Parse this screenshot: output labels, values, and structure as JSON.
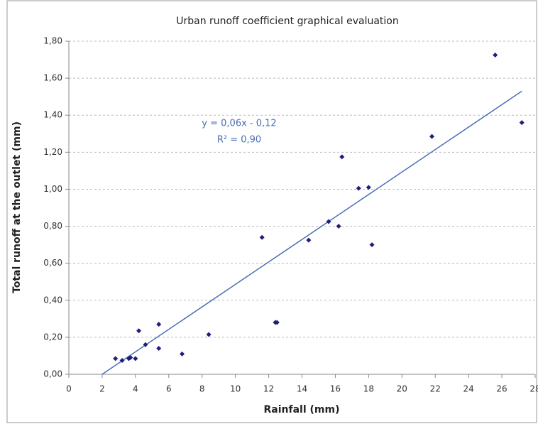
{
  "chart_data": {
    "type": "scatter",
    "title": "Urban runoff coefficient graphical evaluation",
    "x_label": "Rainfall (mm)",
    "y_label": "Total runoff at the outlet (mm)",
    "xlim": [
      0,
      28
    ],
    "xticks": [
      0,
      2,
      4,
      6,
      8,
      10,
      12,
      14,
      16,
      18,
      20,
      22,
      24,
      26,
      28
    ],
    "ylim": [
      0,
      1.8
    ],
    "yticks": [
      {
        "value": 0,
        "label": "0,00"
      },
      {
        "value": 0.2,
        "label": "0,20"
      },
      {
        "value": 0.4,
        "label": "0,40"
      },
      {
        "value": 0.6,
        "label": "0,60"
      },
      {
        "value": 0.8,
        "label": "0,80"
      },
      {
        "value": 1.0,
        "label": "1,00"
      },
      {
        "value": 1.2,
        "label": "1,20"
      },
      {
        "value": 1.4,
        "label": "1,40"
      },
      {
        "value": 1.6,
        "label": "1,60"
      },
      {
        "value": 1.8,
        "label": "1,80"
      }
    ],
    "grid": true,
    "color": "#1f1f7a",
    "x": [
      2.8,
      3.2,
      3.6,
      3.7,
      4.0,
      4.2,
      4.6,
      5.4,
      5.4,
      6.8,
      8.4,
      11.6,
      12.4,
      12.5,
      14.4,
      15.6,
      16.2,
      16.4,
      17.4,
      18.0,
      18.2,
      21.8,
      25.6,
      27.2
    ],
    "values": [
      0.085,
      0.075,
      0.085,
      0.09,
      0.085,
      0.235,
      0.16,
      0.27,
      0.14,
      0.11,
      0.215,
      0.74,
      0.28,
      0.28,
      0.725,
      0.825,
      0.8,
      1.175,
      1.005,
      1.01,
      0.7,
      1.285,
      1.725,
      1.36
    ],
    "trendline": {
      "x": [
        2,
        27.2
      ],
      "y": [
        0,
        1.53
      ],
      "color": "#4a6fb5",
      "equation": "y = 0,06x - 0,12",
      "r_squared": "R² = 0,90"
    }
  }
}
